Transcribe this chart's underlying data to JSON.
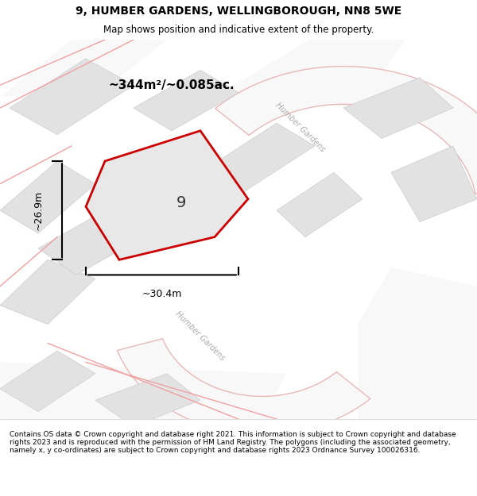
{
  "title": "9, HUMBER GARDENS, WELLINGBOROUGH, NN8 5WE",
  "subtitle": "Map shows position and indicative extent of the property.",
  "footer": "Contains OS data © Crown copyright and database right 2021. This information is subject to Crown copyright and database rights 2023 and is reproduced with the permission of HM Land Registry. The polygons (including the associated geometry, namely x, y co-ordinates) are subject to Crown copyright and database rights 2023 Ordnance Survey 100026316.",
  "area_label": "~344m²/~0.085ac.",
  "plot_number": "9",
  "dim_width": "~30.4m",
  "dim_height": "~26.9m",
  "street_label1": "Humber Gardens",
  "street_label2": "Humber Gardens",
  "bg_color": "#f0eeee",
  "map_bg": "#f5f4f4",
  "plot_fill": "#e8e8e8",
  "plot_outline": "#cc0000",
  "road_fill": "#ffffff",
  "road_outline": "#e0c0c0",
  "building_fill": "#e0e0e0",
  "building_outline": "#cccccc"
}
